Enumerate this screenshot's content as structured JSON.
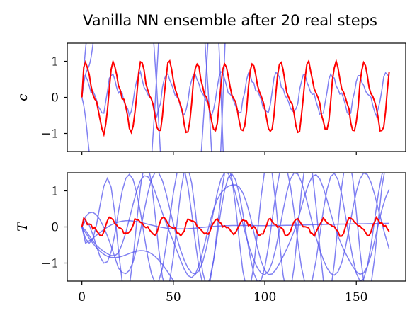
{
  "chart_data": {
    "title": "Vanilla NN ensemble after 20 real steps",
    "type": "line",
    "colors": {
      "truth": "#ff0000",
      "ensemble": "#5555ee"
    },
    "panels": [
      {
        "ylabel": "c",
        "xlim": [
          -8,
          177
        ],
        "ylim": [
          -1.5,
          1.5
        ],
        "yticks": [
          -1,
          0,
          1
        ],
        "ytick_labels": [
          "−1",
          "0",
          "1"
        ],
        "xticks": [
          0,
          50,
          100,
          150
        ],
        "xtick_labels": [],
        "truth": {
          "kind": "osc",
          "amp": 0.95,
          "period": 15.2,
          "phase": 0.25,
          "bias": 0.0,
          "jitter": 0.06,
          "x_end": 168
        },
        "ensemble": [
          {
            "kind": "osc",
            "amp": 0.55,
            "period": 15.0,
            "phase": 0.55,
            "bias": 0.12,
            "jitter": 0.08,
            "x_end": 168
          },
          {
            "kind": "diverge",
            "x_end": 15,
            "rate": -0.35
          },
          {
            "kind": "diverge",
            "x_end": 13,
            "rate": 0.25
          },
          {
            "kind": "diverge",
            "x_end": 8,
            "rate": 0.6
          },
          {
            "kind": "spike",
            "x0": 40,
            "dir": -1,
            "width": 3
          },
          {
            "kind": "spike",
            "x0": 41,
            "dir": 1,
            "width": 3
          },
          {
            "kind": "spike",
            "x0": 67,
            "dir": -1,
            "width": 3
          },
          {
            "kind": "spike",
            "x0": 69,
            "dir": 1,
            "width": 3
          },
          {
            "kind": "spike",
            "x0": 76,
            "dir": 1,
            "width": 2
          },
          {
            "kind": "spike",
            "x0": 77,
            "dir": -1,
            "width": 2
          }
        ]
      },
      {
        "ylabel": "T",
        "xlim": [
          -8,
          177
        ],
        "ylim": [
          -1.5,
          1.5
        ],
        "yticks": [
          -1,
          0,
          1
        ],
        "ytick_labels": [
          "−1",
          "0",
          "1"
        ],
        "xticks": [
          0,
          50,
          100,
          150
        ],
        "xtick_labels": [
          "0",
          "50",
          "100",
          "150"
        ],
        "truth": {
          "kind": "osc",
          "amp": 0.22,
          "period": 14.6,
          "phase": 0.8,
          "bias": 0.0,
          "jitter": 0.05,
          "x_end": 168
        },
        "ensemble": [
          {
            "kind": "wander",
            "seed": 1,
            "amp": 1.4,
            "period": 38,
            "x_end": 168
          },
          {
            "kind": "wander",
            "seed": 2,
            "amp": 1.6,
            "period": 28,
            "x_end": 168
          },
          {
            "kind": "wander",
            "seed": 3,
            "amp": 1.3,
            "period": 46,
            "x_end": 168
          },
          {
            "kind": "wander",
            "seed": 4,
            "amp": 1.8,
            "period": 22,
            "x_end": 168
          },
          {
            "kind": "settle",
            "x_end": 168
          },
          {
            "kind": "drop",
            "x_end": 70
          }
        ]
      }
    ]
  }
}
